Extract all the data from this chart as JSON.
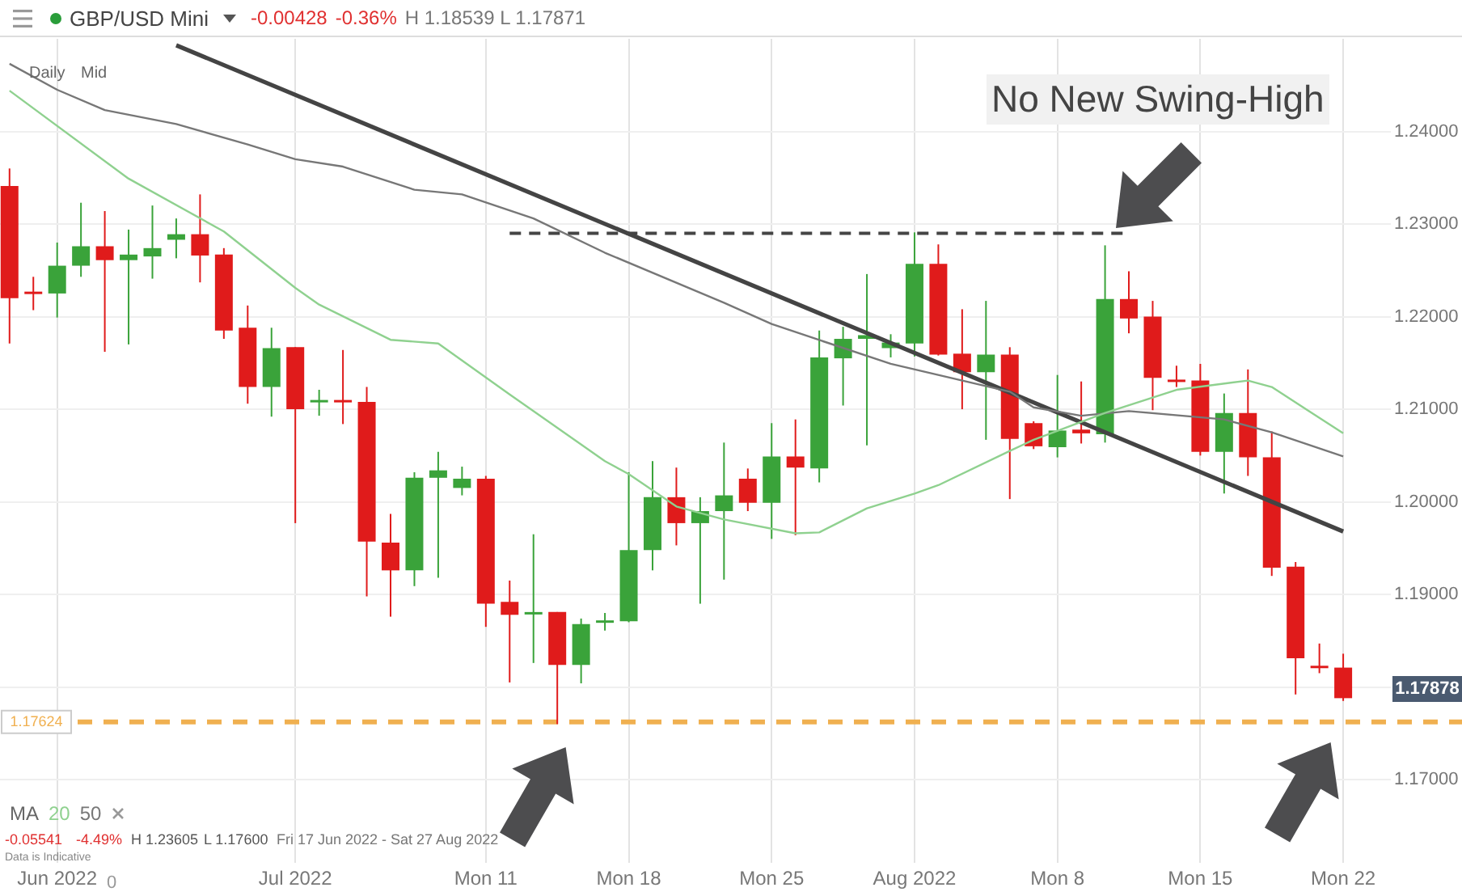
{
  "chart_data": {
    "type": "candlestick",
    "categories": [
      null,
      null,
      "Jun 2022",
      null,
      null,
      null,
      null,
      null,
      null,
      null,
      null,
      null,
      "Jul 2022",
      null,
      null,
      null,
      null,
      null,
      null,
      null,
      "Mon 11",
      null,
      null,
      null,
      null,
      null,
      "Mon 18",
      null,
      null,
      null,
      null,
      null,
      "Mon 25",
      null,
      null,
      null,
      null,
      null,
      "Aug 2022",
      null,
      null,
      null,
      null,
      null,
      "Mon 8",
      null,
      null,
      null,
      null,
      null,
      "Mon 15",
      null,
      null,
      null,
      null,
      null,
      "Mon 22"
    ],
    "ohlc": [
      [
        1.2341,
        1.236,
        1.2171,
        1.222
      ],
      [
        1.2227,
        1.2243,
        1.2207,
        1.2225
      ],
      [
        1.2225,
        1.228,
        1.2199,
        1.2255
      ],
      [
        1.2255,
        1.2323,
        1.2243,
        1.2276
      ],
      [
        1.2276,
        1.2314,
        1.2162,
        1.2261
      ],
      [
        1.2261,
        1.2294,
        1.217,
        1.2267
      ],
      [
        1.2265,
        1.232,
        1.2241,
        1.2274
      ],
      [
        1.2283,
        1.2306,
        1.2263,
        1.2289
      ],
      [
        1.2289,
        1.2332,
        1.2237,
        1.2266
      ],
      [
        1.2267,
        1.2274,
        1.2176,
        1.2185
      ],
      [
        1.2188,
        1.2212,
        1.2106,
        1.2124
      ],
      [
        1.2124,
        1.2188,
        1.2092,
        1.2166
      ],
      [
        1.2167,
        1.2167,
        1.1977,
        1.21
      ],
      [
        1.2108,
        1.2121,
        1.2093,
        1.211
      ],
      [
        1.211,
        1.2164,
        1.2084,
        1.2108
      ],
      [
        1.2108,
        1.2124,
        1.1898,
        1.1957
      ],
      [
        1.1956,
        1.1987,
        1.1876,
        1.1926
      ],
      [
        1.1926,
        1.2032,
        1.1909,
        1.2026
      ],
      [
        1.2026,
        1.2054,
        1.1918,
        1.2034
      ],
      [
        1.2015,
        1.2038,
        1.2007,
        1.2025
      ],
      [
        1.2025,
        1.2028,
        1.1865,
        1.189
      ],
      [
        1.1892,
        1.1915,
        1.1805,
        1.1878
      ],
      [
        1.1879,
        1.1965,
        1.1826,
        1.1881
      ],
      [
        1.1881,
        1.1881,
        1.176,
        1.1824
      ],
      [
        1.1824,
        1.1874,
        1.1804,
        1.1868
      ],
      [
        1.187,
        1.188,
        1.1861,
        1.1872
      ],
      [
        1.1871,
        1.2032,
        1.187,
        1.1948
      ],
      [
        1.1948,
        1.2044,
        1.1926,
        1.2005
      ],
      [
        1.2005,
        1.2037,
        1.1953,
        1.1977
      ],
      [
        1.1977,
        1.2005,
        1.189,
        1.199
      ],
      [
        1.199,
        1.2064,
        1.1916,
        1.2007
      ],
      [
        1.2025,
        1.2036,
        1.199,
        1.1999
      ],
      [
        1.1999,
        1.2085,
        1.196,
        1.2049
      ],
      [
        1.2049,
        1.2089,
        1.1964,
        1.2037
      ],
      [
        1.2036,
        1.2185,
        1.2021,
        1.2156
      ],
      [
        1.2155,
        1.2189,
        1.2104,
        1.2176
      ],
      [
        1.2176,
        1.2246,
        1.2061,
        1.218
      ],
      [
        1.2166,
        1.2181,
        1.2156,
        1.2172
      ],
      [
        1.2171,
        1.2291,
        1.2157,
        1.2257
      ],
      [
        1.2257,
        1.2278,
        1.2158,
        1.2159
      ],
      [
        1.216,
        1.2208,
        1.21,
        1.214
      ],
      [
        1.214,
        1.2217,
        1.2067,
        1.2159
      ],
      [
        1.2159,
        1.2167,
        1.2003,
        1.2068
      ],
      [
        1.2085,
        1.2087,
        1.2057,
        1.206
      ],
      [
        1.2059,
        1.2137,
        1.2048,
        1.2077
      ],
      [
        1.2078,
        1.213,
        1.2063,
        1.2074
      ],
      [
        1.2073,
        1.2277,
        1.2064,
        1.2219
      ],
      [
        1.2219,
        1.2249,
        1.2182,
        1.2198
      ],
      [
        1.22,
        1.2217,
        1.2099,
        1.2134
      ],
      [
        1.2132,
        1.2147,
        1.2124,
        1.2131
      ],
      [
        1.2131,
        1.2149,
        1.205,
        1.2054
      ],
      [
        1.2054,
        1.2117,
        1.2009,
        1.2096
      ],
      [
        1.2096,
        1.2143,
        1.2028,
        1.2048
      ],
      [
        1.2048,
        1.2076,
        1.192,
        1.1929
      ],
      [
        1.193,
        1.1935,
        1.1792,
        1.1831
      ],
      [
        1.1823,
        1.1847,
        1.1815,
        1.1821
      ],
      [
        1.1821,
        1.1836,
        1.1785,
        1.1788
      ]
    ],
    "series": [
      {
        "name": "20",
        "type": "line",
        "color": "#8fd18f",
        "values": [
          1.2444,
          null,
          null,
          null,
          null,
          1.2349,
          null,
          null,
          null,
          1.2292,
          null,
          null,
          1.2231,
          1.2213,
          null,
          null,
          1.2175,
          null,
          1.2171,
          null,
          null,
          1.2116,
          null,
          null,
          null,
          1.2044,
          1.203,
          null,
          1.1995,
          null,
          1.1981,
          null,
          null,
          1.1966,
          1.1967,
          null,
          1.1993,
          null,
          1.2009,
          1.2018,
          null,
          null,
          1.2055,
          1.2067,
          null,
          null,
          1.2096,
          null,
          null,
          1.2121,
          null,
          null,
          1.2131,
          1.2124,
          null,
          null,
          1.2074
        ]
      },
      {
        "name": "50",
        "type": "line",
        "color": "#777777",
        "values": [
          1.2473,
          null,
          1.2445,
          null,
          1.2423,
          null,
          null,
          1.2408,
          null,
          null,
          1.2386,
          null,
          1.237,
          null,
          1.2362,
          null,
          null,
          1.2337,
          null,
          1.2332,
          null,
          null,
          1.2306,
          null,
          null,
          1.2269,
          null,
          null,
          null,
          null,
          1.2215,
          null,
          1.2192,
          null,
          null,
          null,
          null,
          1.2149,
          null,
          null,
          null,
          null,
          1.2119,
          1.2102,
          null,
          1.2093,
          null,
          1.2098,
          null,
          null,
          null,
          1.2089,
          null,
          1.2075,
          null,
          null,
          1.2049
        ]
      },
      {
        "type": "line",
        "color": "#444444",
        "values": [
          null,
          null,
          null,
          null,
          null,
          null,
          null,
          1.2493,
          null,
          null,
          null,
          null,
          null,
          null,
          null,
          null,
          null,
          null,
          null,
          null,
          null,
          null,
          null,
          null,
          null,
          null,
          null,
          null,
          null,
          null,
          null,
          null,
          null,
          null,
          null,
          null,
          null,
          null,
          null,
          null,
          null,
          null,
          null,
          null,
          null,
          null,
          null,
          null,
          null,
          null,
          null,
          null,
          null,
          null,
          null,
          null,
          1.1968
        ]
      },
      {
        "type": "line",
        "color": "#444444",
        "line_style": "dashed",
        "values": [
          null,
          null,
          null,
          null,
          null,
          null,
          null,
          null,
          null,
          null,
          null,
          null,
          null,
          null,
          null,
          null,
          null,
          null,
          null,
          null,
          null,
          1.229,
          null,
          null,
          null,
          null,
          null,
          null,
          null,
          null,
          null,
          null,
          null,
          null,
          null,
          null,
          null,
          null,
          null,
          null,
          null,
          null,
          null,
          null,
          null,
          null,
          null,
          1.229,
          null,
          null,
          null,
          null,
          null,
          null,
          null,
          null,
          null
        ]
      }
    ],
    "ylim": [
      1.161,
      1.25
    ],
    "yticks": [
      {
        "value": 1.17,
        "label": "1.17000"
      },
      {
        "value": 1.18,
        "label": null
      },
      {
        "value": 1.19,
        "label": "1.19000"
      },
      {
        "value": 1.2,
        "label": "1.20000"
      },
      {
        "value": 1.21,
        "label": "1.21000"
      },
      {
        "value": 1.22,
        "label": "1.22000"
      },
      {
        "value": 1.23,
        "label": "1.23000"
      },
      {
        "value": 1.24,
        "label": "1.24000"
      }
    ],
    "grid": true,
    "legend": "bottom left",
    "legend_title": "MA",
    "marker": "none",
    "ref_lines": [
      {
        "axis": "y",
        "value": 1.17624,
        "label": "1.17624",
        "color": "#f0b050",
        "line_style": "dashed"
      }
    ],
    "annotations": [
      "GBP/USD Mini",
      "-0.00428",
      "-0.36%",
      "H 1.18539 L 1.17871",
      "Daily",
      "Mid",
      "No New Swing-High",
      "-0.05541",
      "-4.49%",
      "H 1.23605",
      "L 1.17600",
      "Fri 17 Jun 2022 - Sat 27 Aug 2022",
      "Data is Indicative",
      "0",
      "1.17878"
    ]
  }
}
